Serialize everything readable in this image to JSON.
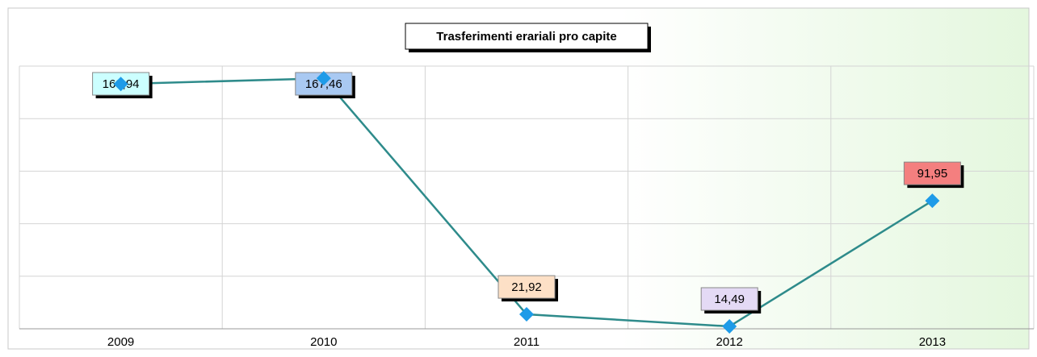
{
  "chart_data": {
    "type": "line",
    "title": "Trasferimenti erariali pro capite",
    "categories": [
      "2009",
      "2010",
      "2011",
      "2012",
      "2013"
    ],
    "values": [
      163.94,
      167.46,
      21.92,
      14.49,
      91.95
    ],
    "value_labels": [
      "163,94",
      "167,46",
      "21,92",
      "14,49",
      "91,95"
    ],
    "label_colors": [
      "#ccffff",
      "#a9c9f2",
      "#fde0c6",
      "#e4daf5",
      "#f47f7f"
    ],
    "color": "#2e8b8b",
    "marker_color": "#1e9be8",
    "ylim": [
      13,
      175
    ],
    "yticks": [
      13,
      45.4,
      77.8,
      110.2,
      142.6,
      175
    ],
    "grid": true
  }
}
